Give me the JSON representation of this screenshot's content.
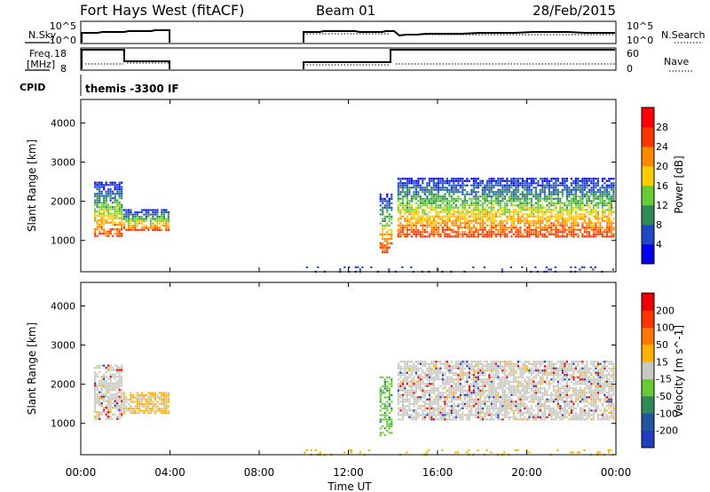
{
  "header": {
    "title": "Fort Hays West (fitACF)",
    "beam": "Beam 01",
    "date": "28/Feb/2015"
  },
  "info_panels": {
    "nsky": {
      "label": "N.Sky",
      "right_label": "N.Search",
      "left_ticks": [
        "10^5",
        "10^0"
      ],
      "right_ticks": [
        "10^5",
        "10^0"
      ]
    },
    "freq": {
      "label_line1": "Freq.",
      "label_line2": "[MHz]",
      "right_label": "Nave",
      "left_ticks": [
        "18",
        "8"
      ],
      "right_ticks": [
        "60",
        "0"
      ]
    },
    "cpid": {
      "label": "CPID",
      "text": "themis -3300 IF"
    }
  },
  "chart_data": [
    {
      "type": "heatmap",
      "title": "",
      "xlabel": "",
      "ylabel": "Slant Range [km]",
      "xlim": [
        0,
        24
      ],
      "ylim": [
        200,
        4600
      ],
      "yticks": [
        1000,
        2000,
        3000,
        4000
      ],
      "colorbar": {
        "label": "Power [dB]",
        "ticks": [
          "4",
          "8",
          "12",
          "16",
          "20",
          "24",
          "28"
        ],
        "colors": [
          "#0000ee",
          "#1f49c4",
          "#2e8b57",
          "#66cc33",
          "#ffcc00",
          "#ff8800",
          "#ff3300",
          "#ff0000"
        ]
      },
      "regions": [
        {
          "t": [
            0.6,
            1.8
          ],
          "range": [
            1100,
            2500
          ],
          "note": "band"
        },
        {
          "t": [
            1.9,
            3.9
          ],
          "range": [
            1250,
            1800
          ],
          "note": "band"
        },
        {
          "t": [
            13.4,
            13.9
          ],
          "range": [
            700,
            2200
          ],
          "note": "streak"
        },
        {
          "t": [
            14.2,
            23.9
          ],
          "range": [
            1100,
            2600
          ],
          "note": "band"
        },
        {
          "t": [
            10.0,
            23.9
          ],
          "range": [
            220,
            340
          ],
          "note": "ground scatter"
        }
      ]
    },
    {
      "type": "heatmap",
      "title": "",
      "xlabel": "Time UT",
      "ylabel": "Slant Range [km]",
      "xlim": [
        0,
        24
      ],
      "ylim": [
        200,
        4600
      ],
      "xticks": [
        "00:00",
        "04:00",
        "08:00",
        "12:00",
        "16:00",
        "20:00",
        "00:00"
      ],
      "yticks": [
        1000,
        2000,
        3000,
        4000
      ],
      "colorbar": {
        "label": "Velocity [m s^-1]",
        "ticks": [
          "200",
          "100",
          "50",
          "15",
          "-15",
          "-50",
          "-100",
          "-200"
        ],
        "colors": [
          "#1f3fbf",
          "#2255a0",
          "#2e8b57",
          "#66cc33",
          "#c8c8c0",
          "#ffb000",
          "#ff7700",
          "#ff3300",
          "#ee0000"
        ]
      }
    }
  ],
  "time_axis": {
    "label": "Time UT",
    "ticks": [
      "00:00",
      "04:00",
      "08:00",
      "12:00",
      "16:00",
      "20:00",
      "00:00"
    ]
  }
}
